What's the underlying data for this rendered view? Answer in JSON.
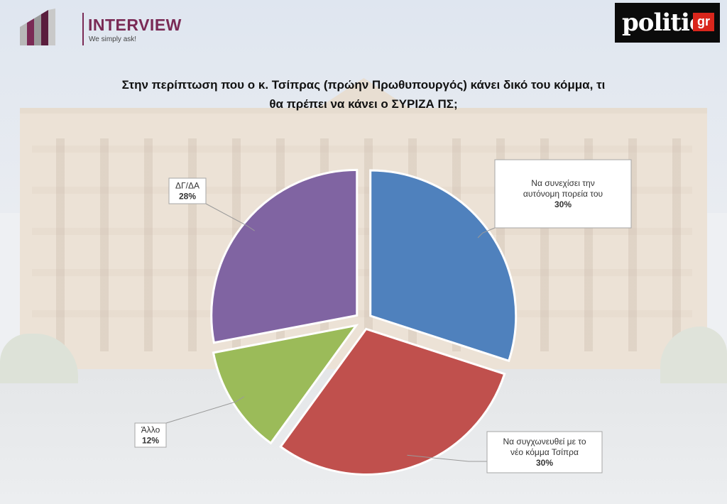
{
  "header": {
    "brand_name": "INTERVIEW",
    "brand_tagline": "We simply ask!",
    "partner_name": "politic",
    "partner_suffix": "gr"
  },
  "chart_data": {
    "type": "pie",
    "title": "Στην περίπτωση που ο κ. Τσίπρας (πρώην Πρωθυπουργός) κάνει δικό του κόμμα, τι θα πρέπει να κάνει ο ΣΥΡΙΖΑ ΠΣ;",
    "title_lines": [
      "Στην περίπτωση που ο κ. Τσίπρας (πρώην Πρωθυπουργός) κάνει δικό του κόμμα, τι",
      "θα πρέπει να κάνει ο ΣΥΡΙΖΑ ΠΣ;"
    ],
    "slices": [
      {
        "label_lines": [
          "Να συνεχίσει την",
          "αυτόνομη πορεία του"
        ],
        "value": 30,
        "value_label": "30%",
        "color": "#4f81bd"
      },
      {
        "label_lines": [
          "Να συγχωνευθεί με το",
          "νέο κόμμα Τσίπρα"
        ],
        "value": 30,
        "value_label": "30%",
        "color": "#c0504d"
      },
      {
        "label_lines": [
          "Άλλο"
        ],
        "value": 12,
        "value_label": "12%",
        "color": "#9bbb59"
      },
      {
        "label_lines": [
          "ΔΓ/ΔΑ"
        ],
        "value": 28,
        "value_label": "28%",
        "color": "#8064a2"
      }
    ],
    "legend": "callouts"
  }
}
